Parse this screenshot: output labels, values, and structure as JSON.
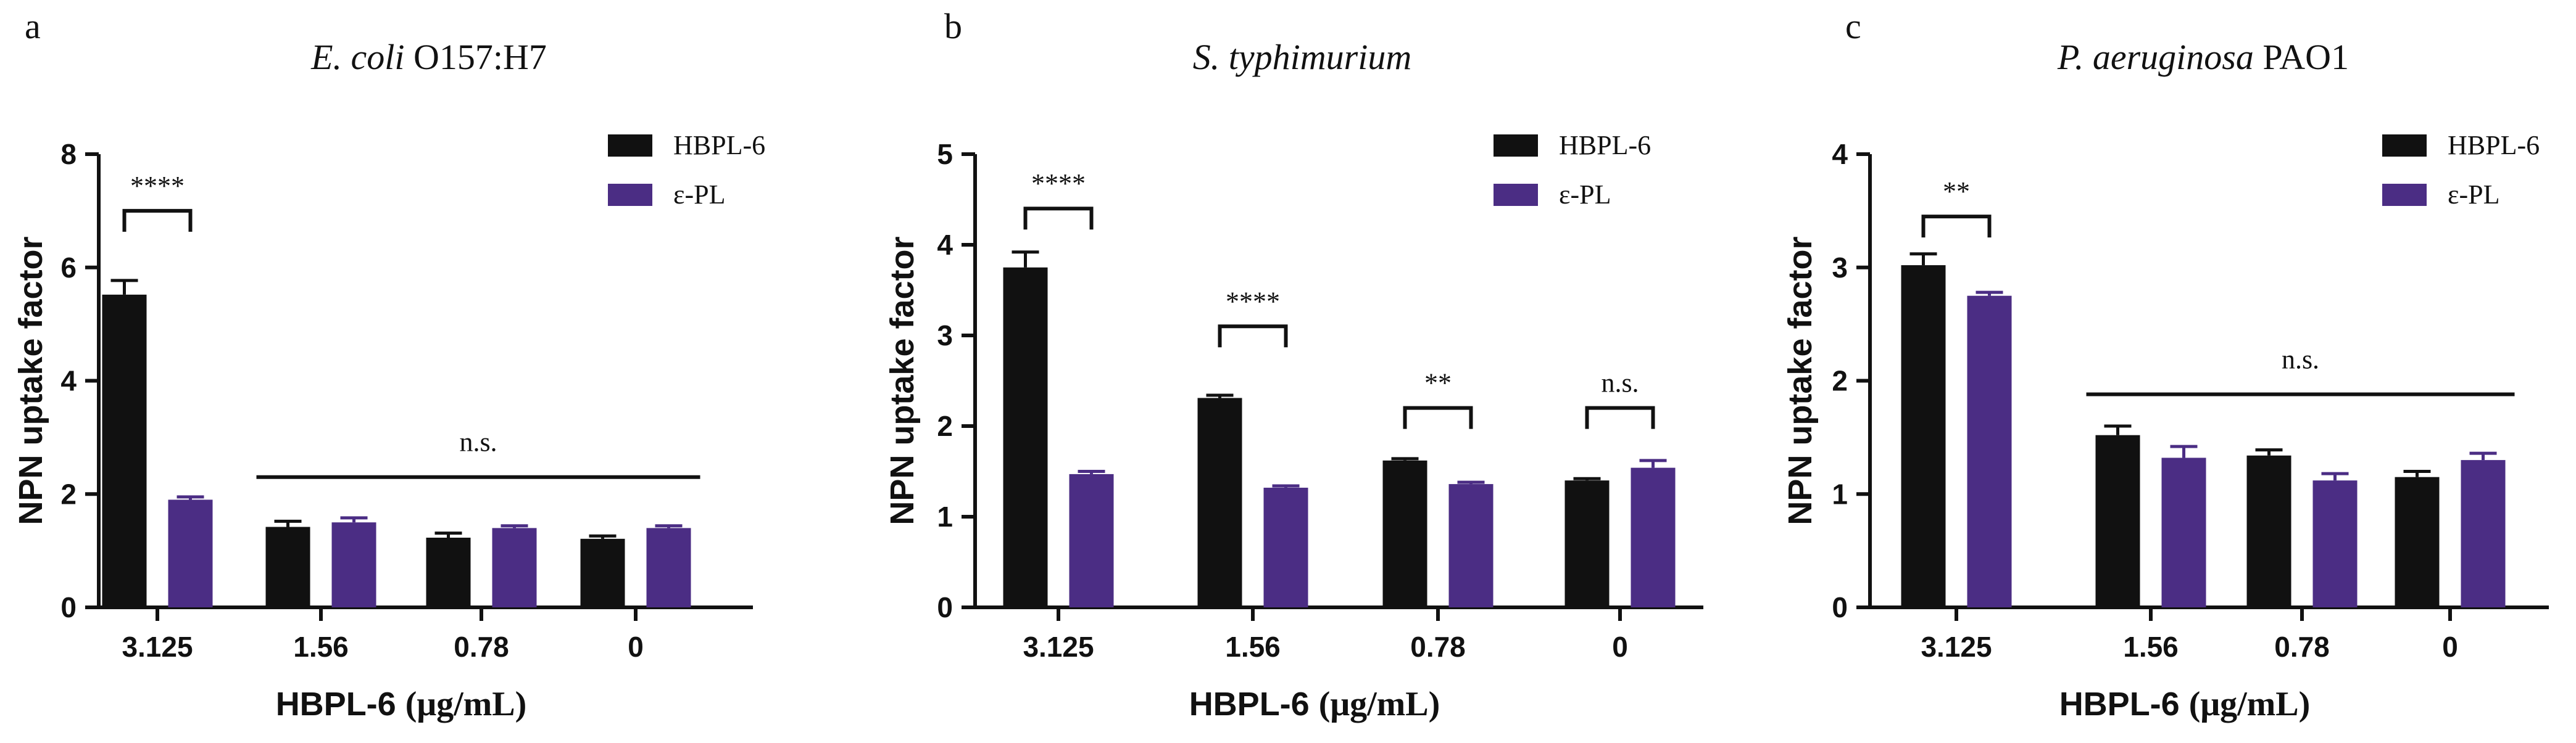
{
  "colors": {
    "hbpl": "#111111",
    "epl": "#4b2d84",
    "axis": "#111111"
  },
  "chart_data": [
    {
      "type": "bar",
      "panel": "a",
      "title_italic": "E. coli",
      "title_rest": " O157:H7",
      "ylabel": "NPN uptake factor",
      "xlabel_sans": "HBPL-6 ",
      "xlabel_serif": "(μg/mL)",
      "ylim": [
        0,
        8
      ],
      "yticks": [
        0,
        2,
        4,
        6,
        8
      ],
      "categories": [
        "3.125",
        "1.56",
        "0.78",
        "0"
      ],
      "series": [
        {
          "name": "HBPL-6",
          "values": [
            5.52,
            1.42,
            1.23,
            1.21
          ],
          "errors": [
            0.25,
            0.1,
            0.08,
            0.05
          ]
        },
        {
          "name": "ε-PL",
          "values": [
            1.9,
            1.5,
            1.4,
            1.4
          ],
          "errors": [
            0.05,
            0.08,
            0.04,
            0.04
          ]
        }
      ],
      "annotations": [
        {
          "type": "bracket",
          "from": 0,
          "to": 0,
          "y": 7.0,
          "label": "****"
        },
        {
          "type": "line",
          "from": 1,
          "to": 3,
          "y": 2.3,
          "label": "n.s."
        }
      ]
    },
    {
      "type": "bar",
      "panel": "b",
      "title_italic": "S. typhimurium",
      "title_rest": "",
      "ylabel": "NPN uptake factor",
      "xlabel_sans": "HBPL-6 ",
      "xlabel_serif": "(μg/mL)",
      "ylim": [
        0,
        5
      ],
      "yticks": [
        0,
        1,
        2,
        3,
        4,
        5
      ],
      "categories": [
        "3.125",
        "1.56",
        "0.78",
        "0"
      ],
      "series": [
        {
          "name": "HBPL-6",
          "values": [
            3.75,
            2.31,
            1.62,
            1.4
          ],
          "errors": [
            0.17,
            0.03,
            0.02,
            0.02
          ]
        },
        {
          "name": "ε-PL",
          "values": [
            1.47,
            1.32,
            1.36,
            1.54
          ],
          "errors": [
            0.03,
            0.02,
            0.02,
            0.08
          ]
        }
      ],
      "annotations": [
        {
          "type": "bracket",
          "from": 0,
          "to": 0,
          "y": 4.4,
          "label": "****"
        },
        {
          "type": "bracket",
          "from": 1,
          "to": 1,
          "y": 3.1,
          "label": "****"
        },
        {
          "type": "bracket",
          "from": 2,
          "to": 2,
          "y": 2.2,
          "label": "**"
        },
        {
          "type": "bracket",
          "from": 3,
          "to": 3,
          "y": 2.2,
          "label": "n.s."
        }
      ]
    },
    {
      "type": "bar",
      "panel": "c",
      "title_italic": "P. aeruginosa",
      "title_rest": " PAO1",
      "ylabel": "NPN uptake factor",
      "xlabel_sans": "HBPL-6 ",
      "xlabel_serif": "(μg/mL)",
      "ylim": [
        0,
        4
      ],
      "yticks": [
        0,
        1,
        2,
        3,
        4
      ],
      "categories": [
        "3.125",
        "1.56",
        "0.78",
        "0"
      ],
      "series": [
        {
          "name": "HBPL-6",
          "values": [
            3.02,
            1.52,
            1.34,
            1.15
          ],
          "errors": [
            0.1,
            0.08,
            0.05,
            0.05
          ]
        },
        {
          "name": "ε-PL",
          "values": [
            2.75,
            1.32,
            1.12,
            1.3
          ],
          "errors": [
            0.03,
            0.1,
            0.06,
            0.06
          ]
        }
      ],
      "annotations": [
        {
          "type": "bracket",
          "from": 0,
          "to": 0,
          "y": 3.45,
          "label": "**"
        },
        {
          "type": "line",
          "from": 1,
          "to": 3,
          "y": 1.88,
          "label": "n.s."
        }
      ]
    }
  ]
}
